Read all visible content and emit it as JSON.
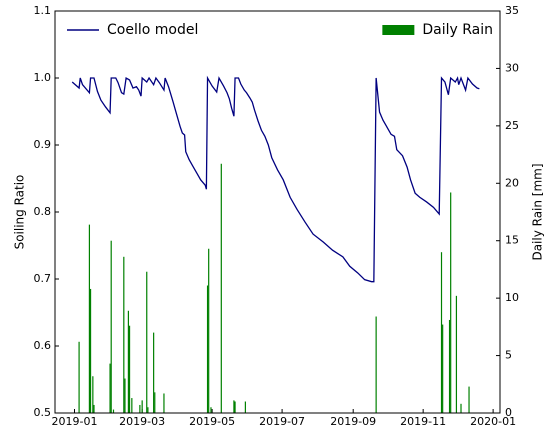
{
  "chart_data": {
    "type": "combo",
    "y_label": "Soiling Ratio",
    "y2_label": "Daily Rain [mm]",
    "xlim": [
      -17,
      371
    ],
    "xticks": [
      {
        "value": 0,
        "label": "2019-01"
      },
      {
        "value": 59,
        "label": "2019-03"
      },
      {
        "value": 120,
        "label": "2019-05"
      },
      {
        "value": 181,
        "label": "2019-07"
      },
      {
        "value": 243,
        "label": "2019-09"
      },
      {
        "value": 304,
        "label": "2019-11"
      },
      {
        "value": 365,
        "label": "2020-01"
      }
    ],
    "ylim": [
      0.5,
      1.1
    ],
    "yticks": [
      0.5,
      0.6,
      0.7,
      0.8,
      0.9,
      {
        "value": 1,
        "label": "1.0"
      },
      1.1
    ],
    "y2lim": [
      0,
      35
    ],
    "y2ticks": [
      0,
      5,
      10,
      15,
      20,
      25,
      30,
      35
    ],
    "grid": false,
    "series": [
      {
        "name": "Coello model",
        "type": "line",
        "color": "#000080",
        "legend": "upper left",
        "x": [
          -2,
          4,
          5,
          7,
          13,
          14,
          17,
          20,
          23,
          27,
          31,
          32,
          36,
          38,
          41,
          43,
          45,
          48,
          51,
          54,
          56,
          58,
          59,
          63,
          65,
          69,
          71,
          74,
          78,
          79,
          82,
          86,
          88,
          92,
          94,
          96,
          97,
          100,
          103,
          105,
          107,
          110,
          114,
          115,
          116,
          120,
          124,
          126,
          130,
          133,
          135,
          137,
          139,
          140,
          143,
          145,
          148,
          150,
          153,
          155,
          157,
          160,
          163,
          166,
          169,
          172,
          177,
          182,
          188,
          194,
          201,
          208,
          217,
          225,
          234,
          240,
          247,
          253,
          259,
          261,
          263,
          266,
          269,
          272,
          276,
          279,
          281,
          286,
          290,
          293,
          297,
          301,
          307,
          313,
          318,
          320,
          323,
          326,
          328,
          332,
          334,
          335,
          337,
          341,
          343,
          347,
          351,
          353
        ],
        "values": [
          0.994,
          0.985,
          1.0,
          0.99,
          0.978,
          1.0,
          1.0,
          0.98,
          0.967,
          0.957,
          0.948,
          1.0,
          1.0,
          0.993,
          0.978,
          0.976,
          1.0,
          0.997,
          0.985,
          0.987,
          0.982,
          0.973,
          1.0,
          0.994,
          1.0,
          0.99,
          1.0,
          0.993,
          0.982,
          1.0,
          0.987,
          0.964,
          0.952,
          0.928,
          0.918,
          0.915,
          0.89,
          0.878,
          0.869,
          0.863,
          0.857,
          0.848,
          0.84,
          0.834,
          1.0,
          0.988,
          0.979,
          1.0,
          0.988,
          0.978,
          0.969,
          0.955,
          0.943,
          1.0,
          1.0,
          0.991,
          0.982,
          0.978,
          0.97,
          0.964,
          0.952,
          0.936,
          0.922,
          0.913,
          0.9,
          0.881,
          0.863,
          0.848,
          0.822,
          0.804,
          0.785,
          0.767,
          0.755,
          0.743,
          0.733,
          0.719,
          0.709,
          0.699,
          0.696,
          0.696,
          1.0,
          0.949,
          0.937,
          0.928,
          0.916,
          0.913,
          0.893,
          0.884,
          0.867,
          0.848,
          0.828,
          0.822,
          0.815,
          0.807,
          0.797,
          1.0,
          0.994,
          0.975,
          1.0,
          0.994,
          1.0,
          0.99,
          1.0,
          0.982,
          1.0,
          0.991,
          0.985,
          0.984
        ]
      },
      {
        "name": "Daily Rain",
        "type": "bar",
        "axis": "y2",
        "color": "#008000",
        "legend": "upper right",
        "x": [
          4,
          13,
          14,
          16,
          17,
          31,
          32,
          34,
          43,
          44,
          47,
          48,
          50,
          57,
          59,
          63,
          64,
          69,
          70,
          78,
          116,
          117,
          119,
          128,
          139,
          140,
          149,
          263,
          320,
          321,
          327,
          328,
          333,
          337,
          344
        ],
        "values": [
          6.2,
          16.4,
          10.8,
          3.2,
          0.7,
          4.3,
          15.0,
          0.3,
          13.6,
          3.0,
          8.9,
          7.6,
          1.3,
          0.7,
          1.1,
          12.3,
          0.5,
          7.0,
          1.8,
          1.7,
          11.1,
          14.3,
          0.5,
          21.7,
          1.1,
          1.0,
          1.0,
          8.4,
          14.0,
          7.7,
          8.1,
          19.2,
          10.2,
          0.8,
          2.3
        ]
      }
    ]
  }
}
